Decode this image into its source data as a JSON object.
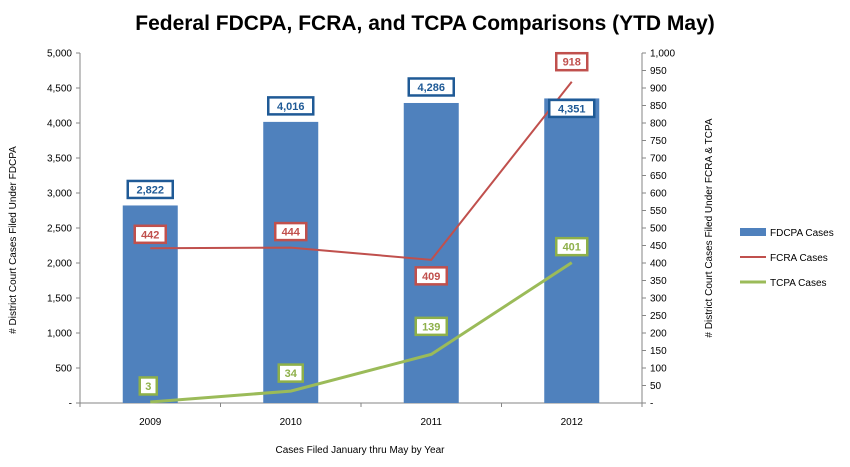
{
  "chart_data": {
    "type": "bar",
    "title": "Federal FDCPA, FCRA, and TCPA Comparisons (YTD May)",
    "xlabel": "Cases Filed January thru May by Year",
    "ylabel": "# District Court Cases Filed Under FDCPA",
    "y2label": "# District Court Cases Filed Under FCRA & TCPA",
    "categories": [
      "2009",
      "2010",
      "2011",
      "2012"
    ],
    "ylim": [
      0,
      5000
    ],
    "y2lim": [
      0,
      1000
    ],
    "y_ticks": [
      "-",
      "500",
      "1,000",
      "1,500",
      "2,000",
      "2,500",
      "3,000",
      "3,500",
      "4,000",
      "4,500",
      "5,000"
    ],
    "y2_ticks": [
      "-",
      "50",
      "100",
      "150",
      "200",
      "250",
      "300",
      "350",
      "400",
      "450",
      "500",
      "550",
      "600",
      "650",
      "700",
      "750",
      "800",
      "850",
      "900",
      "950",
      "1,000"
    ],
    "legend_position": "right",
    "grid": false,
    "series": [
      {
        "name": "FDCPA Cases",
        "type": "bar",
        "axis": "left",
        "color": "#4f81bd",
        "values": [
          2822,
          4016,
          4286,
          4351
        ],
        "labels": [
          "2,822",
          "4,016",
          "4,286",
          "4,351"
        ]
      },
      {
        "name": "FCRA Cases",
        "type": "line",
        "axis": "right",
        "color": "#c0504d",
        "values": [
          442,
          444,
          409,
          918
        ],
        "labels": [
          "442",
          "444",
          "409",
          "918"
        ]
      },
      {
        "name": "TCPA Cases",
        "type": "line",
        "axis": "right",
        "color": "#9bbb59",
        "values": [
          3,
          34,
          139,
          401
        ],
        "labels": [
          "3",
          "34",
          "139",
          "401"
        ]
      }
    ]
  }
}
